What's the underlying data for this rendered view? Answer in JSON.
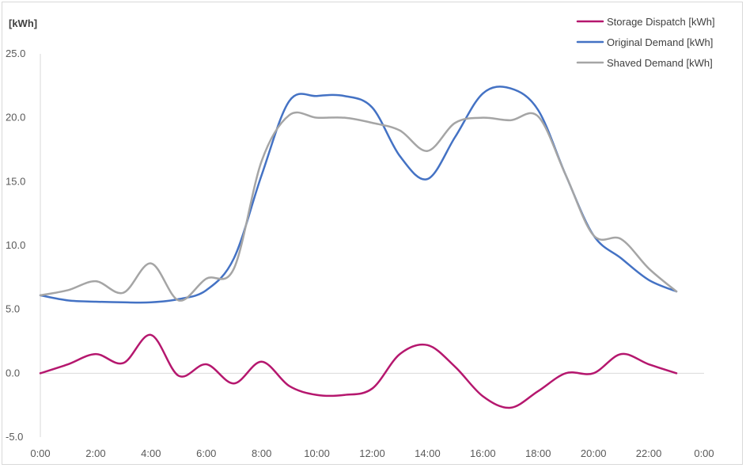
{
  "chart_data": {
    "type": "line",
    "title": "",
    "ylabel": "[kWh]",
    "xlabel": "",
    "ylim": [
      -5,
      25
    ],
    "yticks": [
      25,
      20,
      15,
      10,
      5,
      0,
      -5
    ],
    "ytick_labels": [
      "25.0",
      "20.0",
      "15.0",
      "10.0",
      "5.0",
      "0.0",
      "-5.0"
    ],
    "xlim": [
      0,
      24
    ],
    "xticks": [
      0,
      2,
      4,
      6,
      8,
      10,
      12,
      14,
      16,
      18,
      20,
      22,
      24
    ],
    "xtick_labels": [
      "0:00",
      "2:00",
      "4:00",
      "6:00",
      "8:00",
      "10:00",
      "12:00",
      "14:00",
      "16:00",
      "18:00",
      "20:00",
      "22:00",
      "0:00"
    ],
    "grid": false,
    "legend_position": "top-right",
    "x": [
      0,
      1,
      2,
      3,
      4,
      5,
      6,
      7,
      8,
      9,
      10,
      11,
      12,
      13,
      14,
      15,
      16,
      17,
      18,
      19,
      20,
      21,
      22,
      23
    ],
    "series": [
      {
        "name": "Storage Dispatch [kWh]",
        "color": "#b5176e",
        "values": [
          0.0,
          0.7,
          1.5,
          0.8,
          3.0,
          -0.2,
          0.7,
          -0.8,
          0.9,
          -1.0,
          -1.7,
          -1.7,
          -1.2,
          1.5,
          2.2,
          0.5,
          -1.8,
          -2.7,
          -1.4,
          0.0,
          0.0,
          1.5,
          0.7,
          0.0
        ]
      },
      {
        "name": "Original Demand [kWh]",
        "color": "#4472c4",
        "values": [
          6.1,
          5.7,
          5.6,
          5.55,
          5.55,
          5.8,
          6.5,
          9.0,
          15.5,
          21.3,
          21.7,
          21.7,
          20.8,
          17.0,
          15.2,
          18.5,
          21.9,
          22.3,
          20.6,
          15.5,
          10.8,
          9.0,
          7.3,
          6.4
        ]
      },
      {
        "name": "Shaved Demand [kWh]",
        "color": "#a5a5a5",
        "values": [
          6.1,
          6.5,
          7.2,
          6.3,
          8.6,
          5.7,
          7.4,
          8.2,
          16.6,
          20.2,
          20.0,
          20.0,
          19.6,
          19.0,
          17.4,
          19.6,
          20.0,
          19.8,
          20.1,
          15.5,
          10.8,
          10.5,
          8.2,
          6.4
        ]
      }
    ]
  }
}
